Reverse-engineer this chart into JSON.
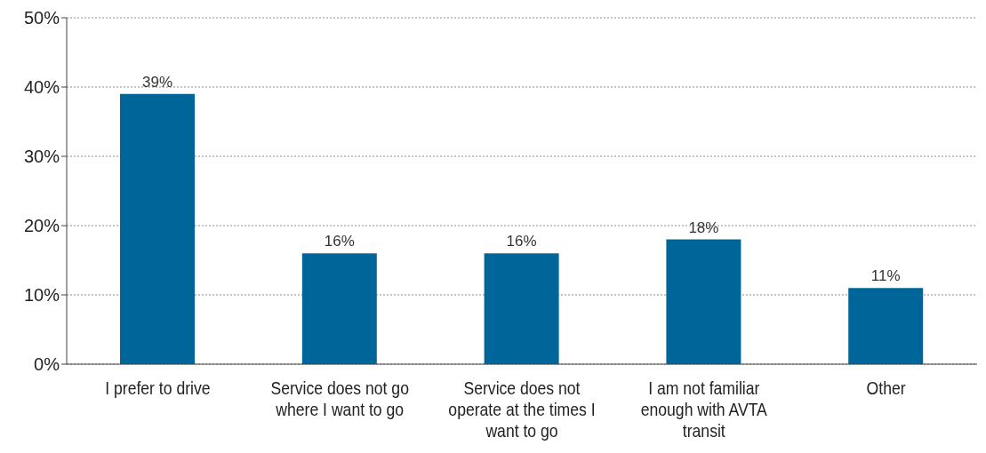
{
  "chart_data": {
    "type": "bar",
    "categories": [
      "I prefer to drive",
      "Service does not go where I want to go",
      "Service does not operate at the times I want to go",
      "I am not familiar enough with AVTA transit",
      "Other"
    ],
    "values": [
      39,
      16,
      16,
      18,
      11
    ],
    "value_labels": [
      "39%",
      "16%",
      "16%",
      "18%",
      "11%"
    ],
    "color": "#006699",
    "ylim": [
      0,
      50
    ],
    "yticks": [
      {
        "value": 0,
        "label": "0%"
      },
      {
        "value": 10,
        "label": "10%"
      },
      {
        "value": 20,
        "label": "20%"
      },
      {
        "value": 30,
        "label": "30%"
      },
      {
        "value": 40,
        "label": "40%"
      },
      {
        "value": 50,
        "label": "50%"
      }
    ],
    "grid": "y"
  }
}
